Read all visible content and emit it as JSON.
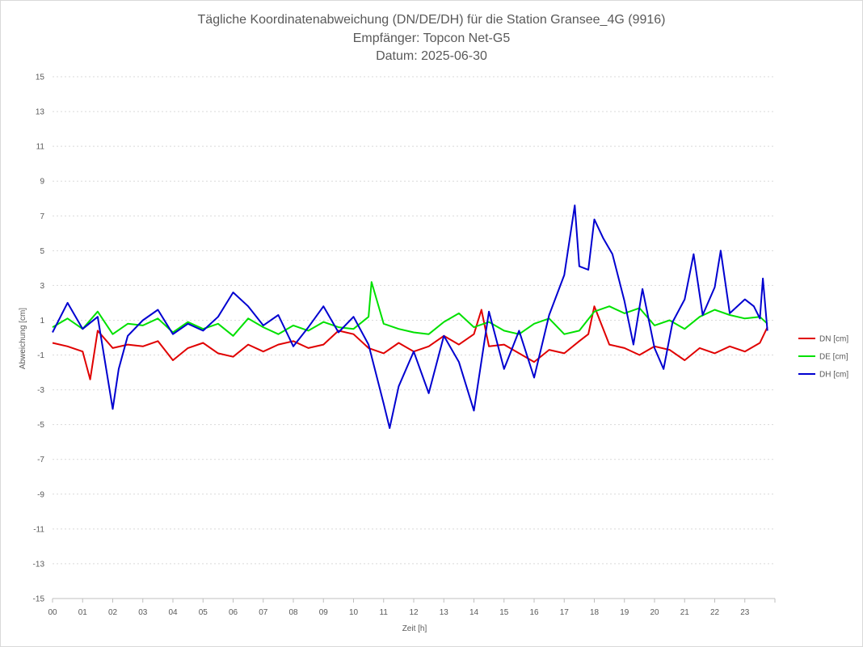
{
  "chart_data": {
    "type": "line",
    "title": [
      "Tägliche Koordinatenabweichung (DN/DE/DH) für die Station Gransee_4G (9916)",
      "Empfänger: Topcon Net-G5",
      "Datum: 2025-06-30"
    ],
    "xlabel": "Zeit [h]",
    "ylabel": "Abweichung [cm]",
    "xlim": [
      0,
      24
    ],
    "ylim": [
      -15,
      15
    ],
    "x_tick_labels": [
      "00",
      "01",
      "02",
      "03",
      "04",
      "05",
      "06",
      "07",
      "08",
      "09",
      "10",
      "11",
      "12",
      "13",
      "14",
      "15",
      "16",
      "17",
      "18",
      "19",
      "20",
      "21",
      "22",
      "23"
    ],
    "y_tick_labels": [
      "15",
      "13",
      "11",
      "9",
      "7",
      "5",
      "3",
      "1",
      "-1",
      "-3",
      "-5",
      "-7",
      "-9",
      "-11",
      "-13",
      "-15"
    ],
    "y_tick_values": [
      15,
      13,
      11,
      9,
      7,
      5,
      3,
      1,
      -1,
      -3,
      -5,
      -7,
      -9,
      -11,
      -13,
      -15
    ],
    "grid": "horizontal dotted",
    "legend_position": "right",
    "series": [
      {
        "name": "DN [cm]",
        "color": "#e00000",
        "x": [
          0,
          0.5,
          1,
          1.25,
          1.5,
          2,
          2.5,
          3,
          3.5,
          4,
          4.5,
          5,
          5.5,
          6,
          6.5,
          7,
          7.5,
          8,
          8.5,
          9,
          9.5,
          10,
          10.5,
          11,
          11.5,
          12,
          12.5,
          13,
          13.5,
          14,
          14.25,
          14.5,
          15,
          15.5,
          16,
          16.5,
          17,
          17.5,
          17.8,
          18,
          18.5,
          19,
          19.5,
          20,
          20.5,
          21,
          21.5,
          22,
          22.5,
          23,
          23.5,
          23.75
        ],
        "y": [
          -0.3,
          -0.5,
          -0.8,
          -2.4,
          0.4,
          -0.6,
          -0.4,
          -0.5,
          -0.2,
          -1.3,
          -0.6,
          -0.3,
          -0.9,
          -1.1,
          -0.4,
          -0.8,
          -0.4,
          -0.2,
          -0.6,
          -0.4,
          0.4,
          0.2,
          -0.6,
          -0.9,
          -0.3,
          -0.8,
          -0.5,
          0.1,
          -0.4,
          0.2,
          1.6,
          -0.5,
          -0.4,
          -0.9,
          -1.4,
          -0.7,
          -0.9,
          -0.2,
          0.2,
          1.8,
          -0.4,
          -0.6,
          -1.0,
          -0.5,
          -0.7,
          -1.3,
          -0.6,
          -0.9,
          -0.5,
          -0.8,
          -0.3,
          0.6
        ]
      },
      {
        "name": "DE [cm]",
        "color": "#00e000",
        "x": [
          0,
          0.5,
          1,
          1.5,
          2,
          2.5,
          3,
          3.5,
          4,
          4.5,
          5,
          5.5,
          6,
          6.5,
          7,
          7.5,
          8,
          8.5,
          9,
          9.5,
          10,
          10.5,
          10.6,
          11,
          11.5,
          12,
          12.5,
          13,
          13.5,
          14,
          14.5,
          15,
          15.5,
          16,
          16.5,
          17,
          17.5,
          18,
          18.5,
          19,
          19.5,
          20,
          20.5,
          21,
          21.5,
          22,
          22.5,
          23,
          23.5,
          23.75
        ],
        "y": [
          0.6,
          1.1,
          0.5,
          1.5,
          0.2,
          0.8,
          0.7,
          1.1,
          0.3,
          0.9,
          0.5,
          0.8,
          0.1,
          1.1,
          0.6,
          0.2,
          0.7,
          0.4,
          0.9,
          0.6,
          0.5,
          1.2,
          3.2,
          0.8,
          0.5,
          0.3,
          0.2,
          0.9,
          1.4,
          0.6,
          0.9,
          0.4,
          0.2,
          0.8,
          1.1,
          0.2,
          0.4,
          1.5,
          1.8,
          1.4,
          1.7,
          0.7,
          1.0,
          0.5,
          1.2,
          1.6,
          1.3,
          1.1,
          1.2,
          0.8
        ]
      },
      {
        "name": "DH [cm]",
        "color": "#0000d0",
        "x": [
          0,
          0.5,
          1,
          1.5,
          2,
          2.2,
          2.5,
          3,
          3.5,
          4,
          4.5,
          5,
          5.5,
          6,
          6.5,
          7,
          7.5,
          8,
          8.5,
          9,
          9.5,
          10,
          10.5,
          11,
          11.2,
          11.5,
          12,
          12.5,
          13,
          13.5,
          14,
          14.5,
          15,
          15.5,
          16,
          16.5,
          17,
          17.35,
          17.5,
          17.8,
          18,
          18.3,
          18.6,
          19,
          19.3,
          19.6,
          20,
          20.3,
          20.6,
          21,
          21.3,
          21.6,
          22,
          22.2,
          22.5,
          23,
          23.3,
          23.5,
          23.6,
          23.75
        ],
        "y": [
          0.3,
          2.0,
          0.5,
          1.2,
          -4.1,
          -1.8,
          0.1,
          1.0,
          1.6,
          0.2,
          0.8,
          0.4,
          1.2,
          2.6,
          1.8,
          0.7,
          1.3,
          -0.5,
          0.6,
          1.8,
          0.3,
          1.2,
          -0.4,
          -3.8,
          -5.2,
          -2.8,
          -0.8,
          -3.2,
          0.1,
          -1.4,
          -4.2,
          1.5,
          -1.8,
          0.4,
          -2.3,
          1.3,
          3.6,
          7.6,
          4.1,
          3.9,
          6.8,
          5.7,
          4.8,
          2.1,
          -0.4,
          2.8,
          -0.6,
          -1.8,
          0.9,
          2.2,
          4.8,
          1.3,
          2.9,
          5.0,
          1.4,
          2.2,
          1.8,
          1.1,
          3.4,
          0.4
        ]
      }
    ]
  }
}
